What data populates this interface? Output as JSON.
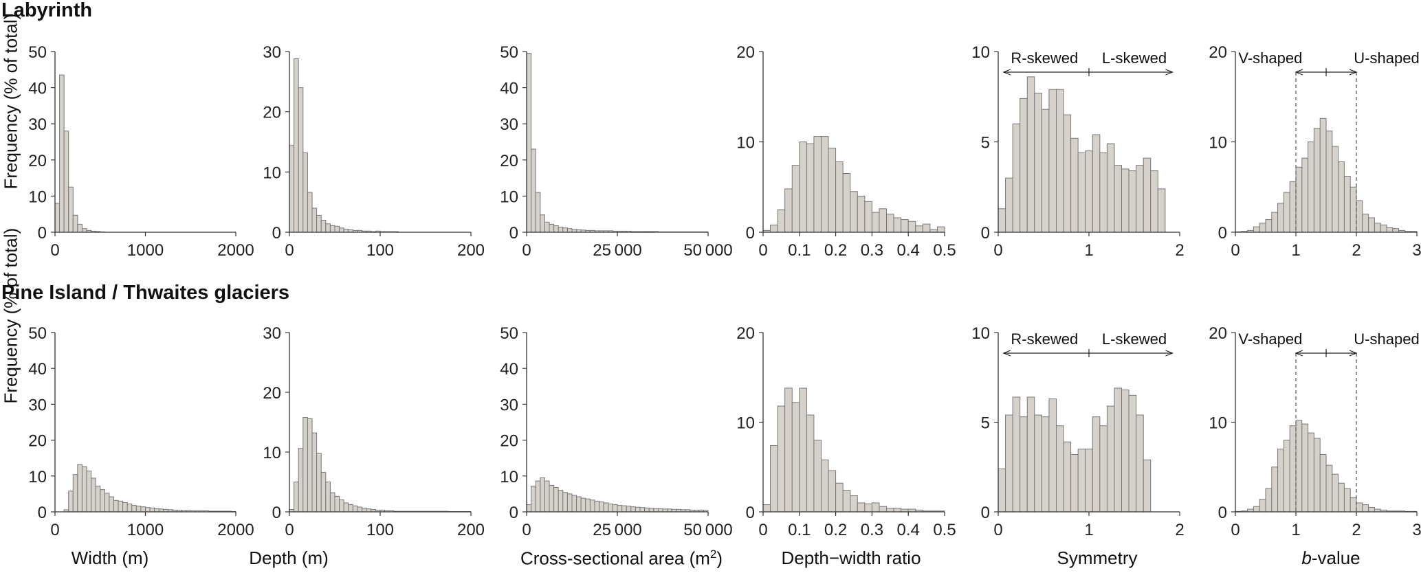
{
  "rows": [
    {
      "title": "Labyrinth"
    },
    {
      "title": "Pine Island / Thwaites glaciers"
    }
  ],
  "ylabel": "Frequency (% of total)",
  "xlabels": [
    "Width (m)",
    "Depth (m)",
    "Cross-sectional area (m",
    "Depth−width ratio",
    "Symmetry",
    "-value"
  ],
  "xlabel_area_sup": "2",
  "xlabel_area_close": ")",
  "xlabel_b_prefix": "b",
  "colors": {
    "bar_fill": "#d6d2cb",
    "bar_stroke": "#777777",
    "axis": "#333333"
  },
  "annotations": {
    "r_skewed": "R-skewed",
    "l_skewed": "L-skewed",
    "v_shaped": "V-shaped",
    "u_shaped": "U-shaped"
  },
  "chart_data": [
    {
      "type": "bar",
      "title": "Labyrinth",
      "panel": "width",
      "xlabel": "Width (m)",
      "ylabel": "Frequency (% of total)",
      "bin_start": 0,
      "bin_width": 50,
      "ylim": [
        0,
        50
      ],
      "xlim": [
        0,
        2000
      ],
      "xticks": [
        0,
        1000,
        2000
      ],
      "xtick_labels": [
        "0",
        "1000",
        "2000"
      ],
      "yticks": [
        0,
        10,
        20,
        30,
        40,
        50
      ],
      "ytick_labels": [
        "0",
        "10",
        "20",
        "30",
        "40",
        "50"
      ],
      "values": [
        8,
        43.5,
        28,
        12.5,
        4.7,
        2.2,
        1.0,
        0.5,
        0.3,
        0.2,
        0.1
      ]
    },
    {
      "type": "bar",
      "title": "Labyrinth",
      "panel": "depth",
      "xlabel": "Depth (m)",
      "bin_start": 0,
      "bin_width": 5,
      "ylim": [
        0,
        30
      ],
      "xlim": [
        0,
        200
      ],
      "xticks": [
        0,
        100,
        200
      ],
      "xtick_labels": [
        "0",
        "100",
        "200"
      ],
      "yticks": [
        0,
        10,
        20,
        30
      ],
      "ytick_labels": [
        "0",
        "10",
        "20",
        "30"
      ],
      "values": [
        14.4,
        28.8,
        24,
        13.2,
        6.6,
        4,
        2.8,
        2,
        1.4,
        1.1,
        1,
        0.7,
        0.5,
        0.4,
        0.3,
        0.3,
        0.2,
        0.2,
        0.1,
        0.2,
        0.1,
        0.1,
        0.1,
        0.1
      ]
    },
    {
      "type": "bar",
      "title": "Labyrinth",
      "panel": "area",
      "xlabel": "Cross-sectional area (m2)",
      "bin_start": 0,
      "bin_width": 1250,
      "ylim": [
        0,
        50
      ],
      "xlim": [
        0,
        50000
      ],
      "xticks": [
        0,
        25000,
        50000
      ],
      "xtick_labels": [
        "0",
        "25 000",
        "50 000"
      ],
      "yticks": [
        0,
        10,
        20,
        30,
        40,
        50
      ],
      "ytick_labels": [
        "0",
        "10",
        "20",
        "30",
        "40",
        "50"
      ],
      "values": [
        49.5,
        23,
        11,
        4.8,
        2.8,
        2.2,
        1.8,
        1.4,
        1.2,
        1,
        0.8,
        0.7,
        0.6,
        0.5,
        0.5,
        0.4,
        0.4,
        0.4,
        0.4,
        0.3,
        0.3,
        0.3,
        0.3,
        0.2,
        0.2,
        0.2,
        0.2,
        0.2,
        0.2,
        0.1,
        0.1,
        0.1,
        0.1,
        0.1,
        0.1,
        0.1,
        0.1,
        0.1,
        0.1,
        0.1
      ]
    },
    {
      "type": "bar",
      "title": "Labyrinth",
      "panel": "depth-width",
      "xlabel": "Depth−width ratio",
      "bin_start": 0,
      "bin_width": 0.02,
      "ylim": [
        0,
        20
      ],
      "xlim": [
        0,
        0.5
      ],
      "xticks": [
        0,
        0.1,
        0.2,
        0.3,
        0.4,
        0.5
      ],
      "xtick_labels": [
        "0",
        "0.1",
        "0.2",
        "0.3",
        "0.4",
        "0.5"
      ],
      "yticks": [
        0,
        10,
        20
      ],
      "ytick_labels": [
        "0",
        "10",
        "20"
      ],
      "values": [
        0.2,
        0.8,
        2.5,
        4.8,
        7.4,
        10,
        9.8,
        10.6,
        10.6,
        9.3,
        7.8,
        6.5,
        4.5,
        4.0,
        3.4,
        2.2,
        2.6,
        2.0,
        1.6,
        1.4,
        1.2,
        0.7,
        0.9,
        0.3,
        0.6
      ]
    },
    {
      "type": "bar",
      "title": "Labyrinth",
      "panel": "symmetry",
      "xlabel": "Symmetry",
      "bin_start": 0,
      "bin_width": 0.08,
      "ylim": [
        0,
        10
      ],
      "xlim": [
        0,
        2
      ],
      "xticks": [
        0,
        1,
        2
      ],
      "xtick_labels": [
        "0",
        "1",
        "2"
      ],
      "yticks": [
        0,
        5,
        10
      ],
      "ytick_labels": [
        "0",
        "5",
        "10"
      ],
      "values": [
        1.3,
        3.0,
        6.0,
        7.4,
        8.6,
        7.7,
        6.8,
        7.9,
        7.9,
        6.5,
        5.2,
        4.4,
        4.5,
        5.4,
        4.4,
        4.9,
        3.7,
        3.5,
        3.4,
        3.7,
        4.1,
        3.4,
        2.4,
        0,
        0
      ]
    },
    {
      "type": "bar",
      "title": "Labyrinth",
      "panel": "b-value",
      "xlabel": "b-value",
      "bin_start": 0,
      "bin_width": 0.1,
      "ylim": [
        0,
        20
      ],
      "xlim": [
        0,
        3
      ],
      "xticks": [
        0,
        1,
        2,
        3
      ],
      "xtick_labels": [
        "0",
        "1",
        "2",
        "3"
      ],
      "yticks": [
        0,
        10,
        20
      ],
      "ytick_labels": [
        "0",
        "10",
        "20"
      ],
      "values": [
        0.05,
        0.1,
        0.2,
        0.6,
        1.0,
        1.4,
        2.2,
        3.2,
        4.4,
        5.6,
        7.2,
        8.2,
        10.0,
        11.5,
        12.6,
        11.2,
        9.5,
        7.8,
        6.2,
        5.0,
        3.5,
        2.0,
        1.6,
        1.0,
        0.8,
        0.5,
        0.4,
        0.2,
        0.1,
        0.1
      ]
    },
    {
      "type": "bar",
      "title": "Pine Island / Thwaites glaciers",
      "panel": "width",
      "xlabel": "Width (m)",
      "bin_start": 0,
      "bin_width": 50,
      "ylim": [
        0,
        50
      ],
      "xlim": [
        0,
        2000
      ],
      "xticks": [
        0,
        1000,
        2000
      ],
      "xtick_labels": [
        "0",
        "1000",
        "2000"
      ],
      "yticks": [
        0,
        10,
        20,
        30,
        40,
        50
      ],
      "ytick_labels": [
        "0",
        "10",
        "20",
        "30",
        "40",
        "50"
      ],
      "values": [
        0,
        0,
        0.6,
        5.8,
        10.4,
        13.2,
        12.6,
        11.4,
        9.4,
        7.2,
        6.2,
        5.2,
        4.2,
        3.2,
        3.0,
        2.6,
        2.2,
        1.8,
        1.6,
        1.4,
        1.2,
        1.1,
        0.9,
        0.8,
        0.7,
        0.6,
        0.5,
        0.5,
        0.4,
        0.4,
        0.3,
        0.3,
        0.3,
        0.3,
        0.2,
        0.2,
        0.2,
        0.2,
        0.2,
        0.1
      ]
    },
    {
      "type": "bar",
      "title": "Pine Island / Thwaites glaciers",
      "panel": "depth",
      "xlabel": "Depth (m)",
      "bin_start": 0,
      "bin_width": 5,
      "ylim": [
        0,
        30
      ],
      "xlim": [
        0,
        200
      ],
      "xticks": [
        0,
        100,
        200
      ],
      "xtick_labels": [
        "0",
        "100",
        "200"
      ],
      "yticks": [
        0,
        10,
        20,
        30
      ],
      "ytick_labels": [
        "0",
        "10",
        "20",
        "30"
      ],
      "values": [
        0.4,
        5.0,
        10.6,
        15.8,
        15.6,
        13.2,
        9.8,
        6.6,
        5.0,
        3.2,
        2.6,
        2.0,
        1.5,
        1.2,
        1.0,
        0.8,
        0.6,
        0.5,
        0.4,
        0.3,
        0.3,
        0.2,
        0.2,
        0.1,
        0.1,
        0.1,
        0.1,
        0.1,
        0.1,
        0.1,
        0.1,
        0.1,
        0.1,
        0.1,
        0.1,
        0.05,
        0.05,
        0.05,
        0.05,
        0.05
      ]
    },
    {
      "type": "bar",
      "title": "Pine Island / Thwaites glaciers",
      "panel": "area",
      "xlabel": "Cross-sectional area (m2)",
      "bin_start": 0,
      "bin_width": 1250,
      "ylim": [
        0,
        50
      ],
      "xlim": [
        0,
        50000
      ],
      "xticks": [
        0,
        25000,
        50000
      ],
      "xtick_labels": [
        "0",
        "25 000",
        "50 000"
      ],
      "yticks": [
        0,
        10,
        20,
        30,
        40,
        50
      ],
      "ytick_labels": [
        "0",
        "10",
        "20",
        "30",
        "40",
        "50"
      ],
      "values": [
        2.0,
        7.2,
        8.6,
        9.5,
        8.6,
        7.4,
        6.8,
        6.0,
        5.4,
        5.0,
        4.6,
        4.2,
        3.8,
        3.6,
        3.3,
        3.0,
        2.8,
        2.5,
        2.2,
        2.0,
        1.8,
        1.7,
        1.6,
        1.4,
        1.3,
        1.2,
        1.1,
        1.0,
        0.9,
        0.9,
        0.8,
        0.8,
        0.7,
        0.7,
        0.6,
        0.6,
        0.5,
        0.5,
        0.5,
        0.4
      ]
    },
    {
      "type": "bar",
      "title": "Pine Island / Thwaites glaciers",
      "panel": "depth-width",
      "xlabel": "Depth−width ratio",
      "bin_start": 0,
      "bin_width": 0.02,
      "ylim": [
        0,
        20
      ],
      "xlim": [
        0,
        0.5
      ],
      "xticks": [
        0,
        0.1,
        0.2,
        0.3,
        0.4,
        0.5
      ],
      "xtick_labels": [
        "0",
        "0.1",
        "0.2",
        "0.3",
        "0.4",
        "0.5"
      ],
      "yticks": [
        0,
        10,
        20
      ],
      "ytick_labels": [
        "0",
        "10",
        "20"
      ],
      "values": [
        0.8,
        7.4,
        11.8,
        13.8,
        12.2,
        13.8,
        10.8,
        8.0,
        5.8,
        4.6,
        3.2,
        2.4,
        1.8,
        1.0,
        0.9,
        1.0,
        0.6,
        0.4,
        0.4,
        0.3,
        0.3,
        0.2,
        0.1,
        0.1,
        0.1
      ]
    },
    {
      "type": "bar",
      "title": "Pine Island / Thwaites glaciers",
      "panel": "symmetry",
      "xlabel": "Symmetry",
      "bin_start": 0,
      "bin_width": 0.08,
      "ylim": [
        0,
        10
      ],
      "xlim": [
        0,
        2
      ],
      "xticks": [
        0,
        1,
        2
      ],
      "xtick_labels": [
        "0",
        "1",
        "2"
      ],
      "yticks": [
        0,
        5,
        10
      ],
      "ytick_labels": [
        "0",
        "5",
        "10"
      ],
      "values": [
        2.4,
        5.4,
        6.4,
        5.3,
        6.4,
        5.4,
        5.3,
        6.3,
        4.8,
        3.9,
        3.2,
        3.5,
        3.5,
        5.3,
        4.8,
        5.9,
        6.9,
        6.8,
        6.5,
        5.4,
        2.9,
        0,
        0,
        0,
        0
      ]
    },
    {
      "type": "bar",
      "title": "Pine Island / Thwaites glaciers",
      "panel": "b-value",
      "xlabel": "b-value",
      "bin_start": 0,
      "bin_width": 0.1,
      "ylim": [
        0,
        20
      ],
      "xlim": [
        0,
        3
      ],
      "xticks": [
        0,
        1,
        2,
        3
      ],
      "xtick_labels": [
        "0",
        "1",
        "2",
        "3"
      ],
      "yticks": [
        0,
        10,
        20
      ],
      "ytick_labels": [
        "0",
        "10",
        "20"
      ],
      "values": [
        0.05,
        0.1,
        0.3,
        0.6,
        1.4,
        2.6,
        5.0,
        7.0,
        8.0,
        9.6,
        10.2,
        9.8,
        8.8,
        8.2,
        6.4,
        5.2,
        4.2,
        3.2,
        2.6,
        1.6,
        1.0,
        0.8,
        0.5,
        0.3,
        0.2,
        0.1,
        0.1,
        0.1,
        0.05,
        0.05
      ]
    }
  ]
}
